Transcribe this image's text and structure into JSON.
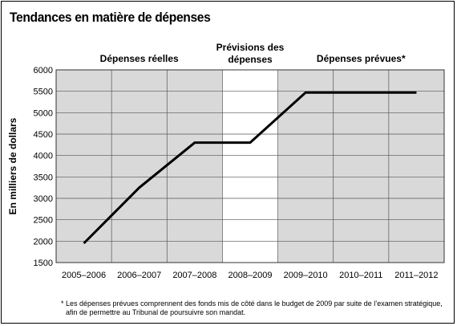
{
  "title": "Tendances en matière de dépenses",
  "chart_data": {
    "type": "line",
    "categories": [
      "2005–2006",
      "2006–2007",
      "2007–2008",
      "2008–2009",
      "2009–2010",
      "2010–2011",
      "2011–2012"
    ],
    "series": [
      {
        "values": [
          1950,
          3250,
          4300,
          4300,
          5470,
          5470,
          5470
        ]
      }
    ],
    "y_ticks": [
      1500,
      2000,
      2500,
      3000,
      3500,
      4000,
      4500,
      5000,
      5500,
      6000
    ],
    "ylim": [
      1500,
      6000
    ],
    "ylabel": "En milliers de dollars",
    "xlabel": "",
    "grid": true,
    "regions": [
      {
        "label": "Dépenses réelles",
        "from": 0,
        "to": 2,
        "shaded": true
      },
      {
        "label": "Prévisions des dépenses",
        "from": 3,
        "to": 3,
        "shaded": false
      },
      {
        "label": "Dépenses prévues*",
        "from": 4,
        "to": 6,
        "shaded": true
      }
    ],
    "colors": {
      "shade": "#d9d9d9",
      "line": "#000000",
      "grid": "#555555"
    }
  },
  "footnote": {
    "line1": "* Les dépenses prévues comprennent des fonds mis de côté dans le budget de 2009 par suite de l’examen stratégique,",
    "line2": "afin de permettre au Tribunal de poursuivre son mandat."
  }
}
